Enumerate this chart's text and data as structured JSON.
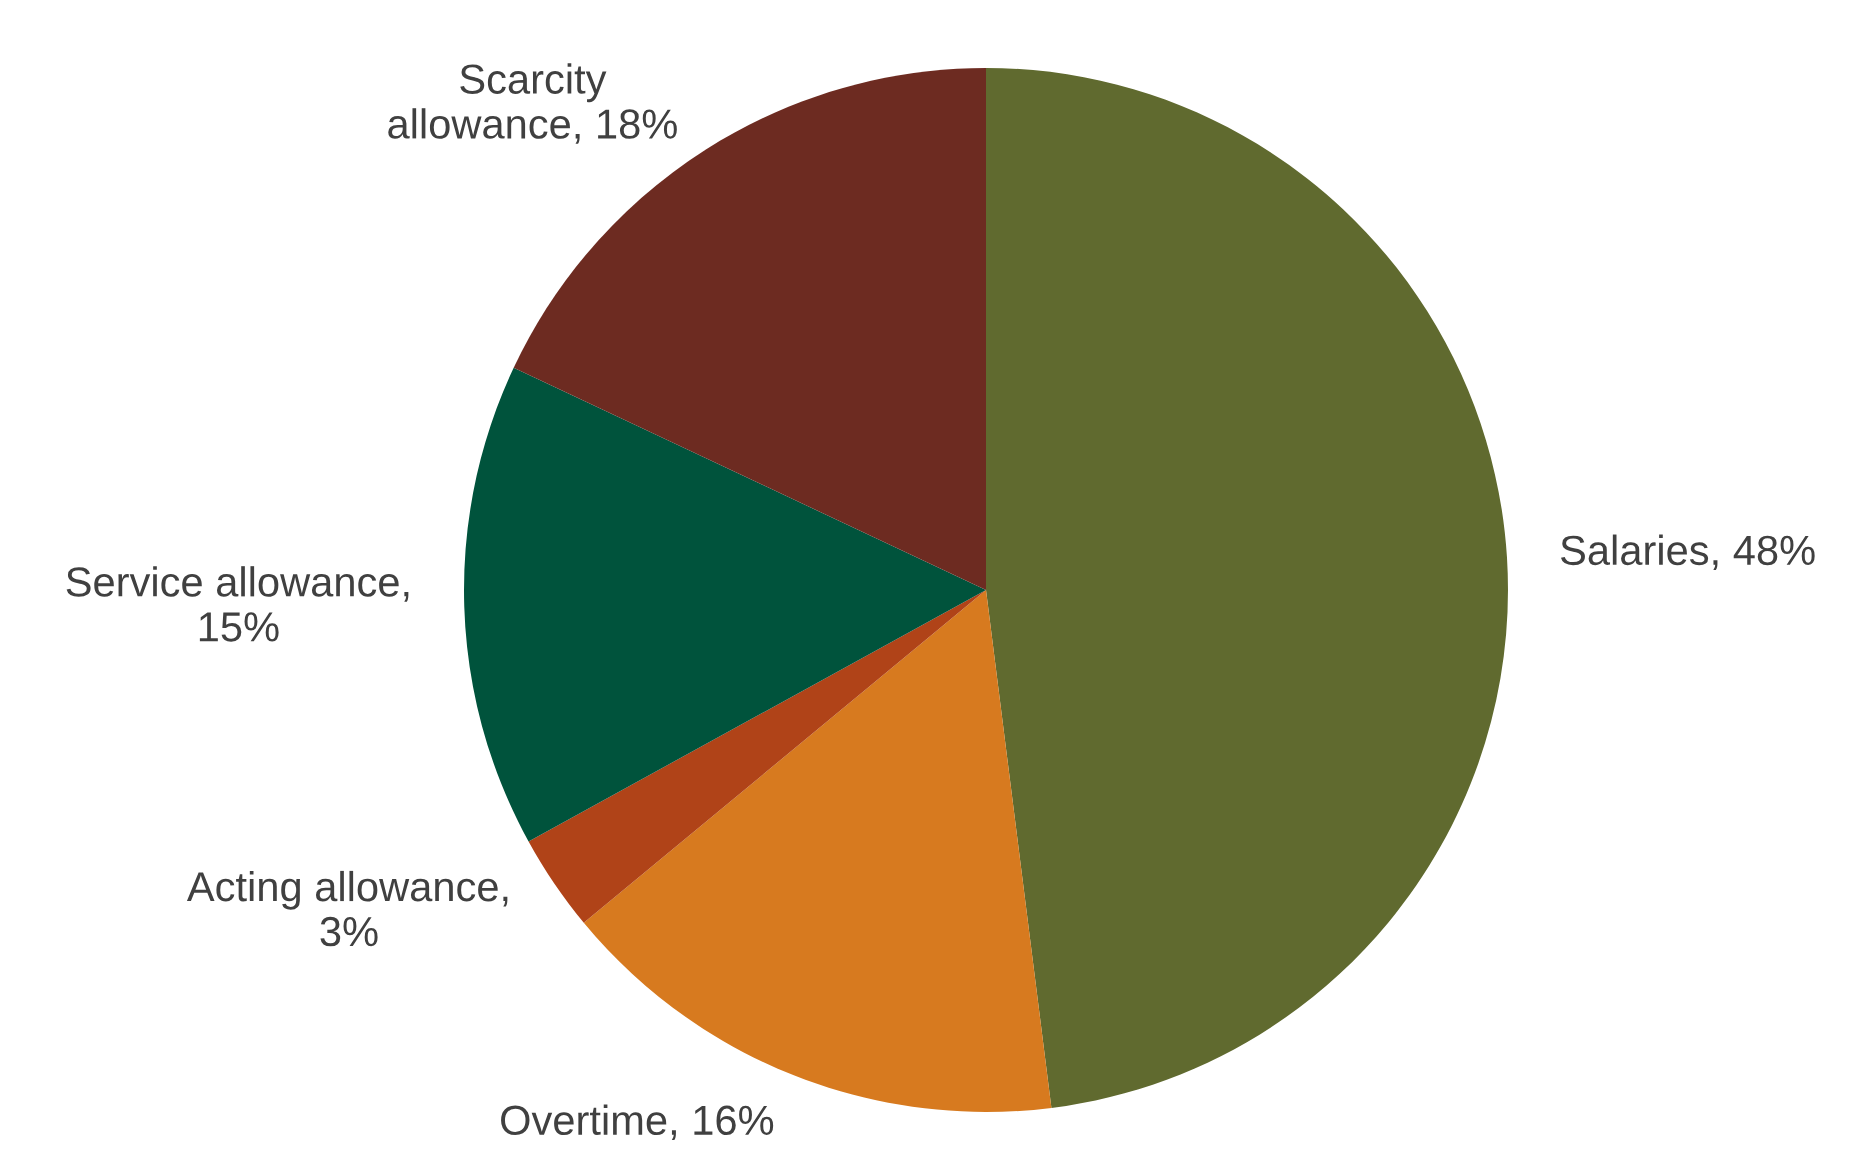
{
  "chart_data": {
    "type": "pie",
    "categories": [
      "Salaries, 48%",
      "Overtime, 16%",
      "Acting allowance,\n3%",
      "Service allowance,\n15%",
      "Scarcity\nallowance, 18%"
    ],
    "values": [
      48,
      16,
      3,
      15,
      18
    ],
    "colors": [
      "#606a2f",
      "#d77a1f",
      "#b04318",
      "#00533c",
      "#6d2b21"
    ]
  }
}
